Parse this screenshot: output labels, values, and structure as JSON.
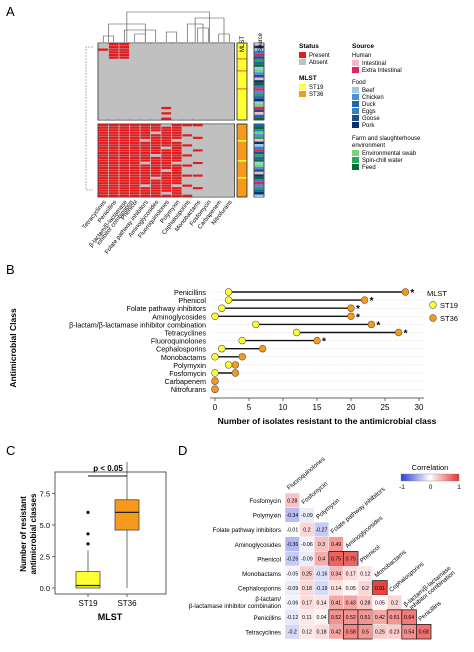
{
  "panel_labels": {
    "a": "A",
    "b": "B",
    "c": "C",
    "d": "D"
  },
  "colors": {
    "present": "#e41a1c",
    "absent": "#c0c0c0",
    "st19": "#ffff33",
    "st36": "#f59a1c",
    "point_edge": "#555555",
    "intestinal": "#f7b6c8",
    "extra_intestinal": "#e0245e",
    "beef": "#9ecae1",
    "chicken": "#4a90d9",
    "duck": "#2166ac",
    "eggs": "#3a7dc9",
    "goose": "#1f4e8c",
    "pork": "#08306b",
    "env_swab": "#74d676",
    "spin_chill": "#2ca25f",
    "feed": "#006d2c",
    "corr_neg": "#2b3cd8",
    "corr_zero": "#ffffff",
    "corr_pos": "#e8302c",
    "box_st19": "#ffff33",
    "box_st36": "#f59a1c"
  },
  "icons": {
    "significance": "star-asterisk",
    "dumbbell": "line-with-two-points"
  },
  "panel_a": {
    "columns": [
      "Tetracyclines",
      "Penicillins",
      "β-lactam/β-lactamase inhibitor combination",
      "Phenicol",
      "Folate pathway inhibitors",
      "Aminoglycosides",
      "Fluoroquinolones",
      "Polymyxin",
      "Cephalosporins",
      "Monobactams",
      "Fosfomycin",
      "Carbapenem",
      "Nitrofurans"
    ],
    "annotation_headers": {
      "mlst": "MLST",
      "source": "Source"
    },
    "legend": {
      "status_title": "Status",
      "present": "Present",
      "absent": "Absent",
      "mlst_title": "MLST",
      "st19": "ST19",
      "st36": "ST36",
      "source_title": "Source",
      "human": "Human",
      "intestinal": "Intestinal",
      "extra_intestinal": "Extra Intestinal",
      "food": "Food",
      "beef": "Beef",
      "chicken": "Chicken",
      "duck": "Duck",
      "eggs": "Eggs",
      "goose": "Goose",
      "pork": "Pork",
      "farm": "Farm and slaughterhouse",
      "environment": "environment",
      "env_swab": "Environmental swab",
      "spin_chill": "Spin-chill water",
      "feed": "Feed"
    }
  },
  "chart_data": [
    {
      "panel": "A",
      "type": "heatmap",
      "xlabel": "",
      "ylabel": "",
      "values_legend": [
        "Present",
        "Absent"
      ],
      "columns": [
        "Tetracyclines",
        "Penicillins",
        "β-lactam/β-lactamase inhibitor combination",
        "Phenicol",
        "Folate pathway inhibitors",
        "Aminoglycosides",
        "Fluoroquinolones",
        "Polymyxin",
        "Cephalosporins",
        "Monobactams",
        "Fosfomycin",
        "Carbapenem",
        "Nitrofurans"
      ],
      "row_groups": [
        {
          "cluster": 1,
          "rows": 29,
          "mlst": "ST19",
          "present_pattern": "mostly absent; present in Penicillins and β-lactam columns for the top rows"
        },
        {
          "cluster": 2,
          "rows": 29,
          "mlst": "ST36",
          "present_pattern": "mostly present in the first eight columns; absent for Fosfomycin, Carbapenem, Nitrofurans"
        }
      ]
    },
    {
      "panel": "B",
      "type": "scatter",
      "title": "",
      "xlabel": "Number of isolates resistant to the antimicrobial class",
      "ylabel": "Antimicrobial Class",
      "xlim": [
        0,
        30
      ],
      "xticks": [
        0,
        5,
        10,
        15,
        20,
        25,
        30
      ],
      "legend_title": "MLST",
      "legend_position": "right",
      "categories": [
        "Penicillins",
        "Phenicol",
        "Folate pathway inhibitors",
        "Aminoglycosides",
        "β-lactam/β-lactamase inhibitor combination",
        "Tetracyclines",
        "Fluoroquinolones",
        "Cephalosporins",
        "Monobactams",
        "Polymyxin",
        "Fosfomycin",
        "Carbapenem",
        "Nitrofurans"
      ],
      "series": [
        {
          "name": "ST19",
          "values": [
            2,
            2,
            1,
            0,
            6,
            12,
            4,
            1,
            0,
            2,
            0,
            0,
            0
          ]
        },
        {
          "name": "ST36",
          "values": [
            28,
            22,
            20,
            20,
            23,
            27,
            15,
            7,
            4,
            3,
            3,
            0,
            0
          ]
        }
      ],
      "significant": [
        true,
        true,
        true,
        true,
        true,
        true,
        true,
        false,
        false,
        false,
        false,
        false,
        false
      ],
      "significance_marker": "*"
    },
    {
      "panel": "C",
      "type": "box",
      "title": "",
      "xlabel": "MLST",
      "ylabel": "Number of resistant antimicrobial classes",
      "ylim": [
        0,
        10
      ],
      "yticks": [
        "0.0",
        "2.5",
        "5.0",
        "7.5"
      ],
      "categories": [
        "ST19",
        "ST36"
      ],
      "annotation": "p < 0.05",
      "boxes": [
        {
          "name": "ST19",
          "min": 0,
          "q1": 0,
          "median": 0.2,
          "q3": 1.3,
          "max": 3,
          "outliers": [
            3.5,
            4.3,
            6
          ]
        },
        {
          "name": "ST36",
          "min": 0,
          "q1": 4.6,
          "median": 6,
          "q3": 7,
          "max": 10,
          "outliers": []
        }
      ]
    },
    {
      "panel": "D",
      "type": "heatmap",
      "title": "",
      "legend_title": "Correlation",
      "legend_ticks": [
        "-1",
        "0",
        "1"
      ],
      "legend_position": "top-right",
      "variables": [
        "Fluoroquinolones",
        "Fosfomycin",
        "Polymyxin",
        "Folate pathway inhibitors",
        "Aminoglycosides",
        "Phenicol",
        "Monobactams",
        "Cephalosporins",
        "β-lactam/β-lactamase inhibitor combination",
        "Penicillins",
        "Tetracyclines"
      ],
      "matrix": [
        {
          "row": "Fosfomycin",
          "values": [
            "0.28"
          ]
        },
        {
          "row": "Polymyxin",
          "values": [
            "-0.34",
            "-0.09"
          ]
        },
        {
          "row": "Folate pathway inhibitors",
          "values": [
            "-0.01",
            "0.2",
            "-0.27"
          ]
        },
        {
          "row": "Aminoglycosides",
          "values": [
            "-0.36",
            "-0.06",
            "0.3",
            "0.49"
          ]
        },
        {
          "row": "Phenicol",
          "values": [
            "-0.26",
            "-0.09",
            "0.4",
            "0.75",
            "0.75"
          ]
        },
        {
          "row": "Monobactams",
          "values": [
            "-0.05",
            "0.25",
            "-0.16",
            "0.34",
            "0.17",
            "0.12"
          ]
        },
        {
          "row": "Cephalosporins",
          "values": [
            "-0.09",
            "0.18",
            "-0.19",
            "0.14",
            "0.05",
            "0.2",
            "0.91"
          ]
        },
        {
          "row": "β-lactam/ β-lactamase inhibitor combination",
          "values": [
            "-0.06",
            "0.17",
            "0.14",
            "0.41",
            "0.43",
            "0.28",
            "0.05",
            "0.2"
          ]
        },
        {
          "row": "Penicillins",
          "values": [
            "-0.12",
            "0.11",
            "0.04",
            "0.52",
            "0.52",
            "0.51",
            "0.42",
            "0.51",
            "0.64"
          ]
        },
        {
          "row": "Tetracyclines",
          "values": [
            "-0.2",
            "0.12",
            "0.18",
            "0.42",
            "0.58",
            "0.5",
            "0.25",
            "0.23",
            "0.54",
            "0.68"
          ]
        }
      ]
    }
  ]
}
